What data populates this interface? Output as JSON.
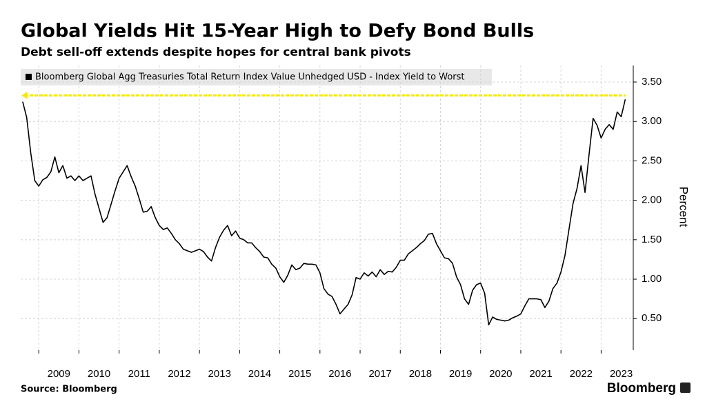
{
  "chart_data": {
    "type": "line",
    "title": "Global Yields Hit 15-Year High to Defy Bond Bulls",
    "subtitle": "Debt sell-off extends despite hopes for central bank pivots",
    "y_label": "Percent",
    "source": "Source: Bloomberg",
    "brand": "Bloomberg",
    "x": [
      2008.6,
      2008.7,
      2008.8,
      2008.9,
      2009.0,
      2009.1,
      2009.2,
      2009.3,
      2009.4,
      2009.5,
      2009.6,
      2009.7,
      2009.8,
      2009.9,
      2010.0,
      2010.1,
      2010.2,
      2010.3,
      2010.4,
      2010.5,
      2010.6,
      2010.7,
      2010.8,
      2010.9,
      2011.0,
      2011.1,
      2011.2,
      2011.3,
      2011.4,
      2011.5,
      2011.6,
      2011.7,
      2011.8,
      2011.9,
      2012.0,
      2012.1,
      2012.2,
      2012.3,
      2012.4,
      2012.5,
      2012.6,
      2012.7,
      2012.8,
      2012.9,
      2013.0,
      2013.1,
      2013.2,
      2013.3,
      2013.4,
      2013.5,
      2013.6,
      2013.7,
      2013.8,
      2013.9,
      2014.0,
      2014.1,
      2014.2,
      2014.3,
      2014.4,
      2014.5,
      2014.6,
      2014.7,
      2014.8,
      2014.9,
      2015.0,
      2015.1,
      2015.2,
      2015.3,
      2015.4,
      2015.5,
      2015.6,
      2015.7,
      2015.8,
      2015.9,
      2016.0,
      2016.1,
      2016.2,
      2016.3,
      2016.4,
      2016.5,
      2016.6,
      2016.7,
      2016.8,
      2016.9,
      2017.0,
      2017.1,
      2017.2,
      2017.3,
      2017.4,
      2017.5,
      2017.6,
      2017.7,
      2017.8,
      2017.9,
      2018.0,
      2018.1,
      2018.2,
      2018.3,
      2018.4,
      2018.5,
      2018.6,
      2018.7,
      2018.8,
      2018.9,
      2019.0,
      2019.1,
      2019.2,
      2019.3,
      2019.4,
      2019.5,
      2019.6,
      2019.7,
      2019.8,
      2019.9,
      2020.0,
      2020.1,
      2020.2,
      2020.3,
      2020.4,
      2020.5,
      2020.6,
      2020.7,
      2020.8,
      2020.9,
      2021.0,
      2021.1,
      2021.2,
      2021.3,
      2021.4,
      2021.5,
      2021.6,
      2021.7,
      2021.8,
      2021.9,
      2022.0,
      2022.1,
      2022.2,
      2022.3,
      2022.4,
      2022.5,
      2022.6,
      2022.7,
      2022.8,
      2022.9,
      2023.0,
      2023.1,
      2023.2,
      2023.3,
      2023.4,
      2023.5,
      2023.6
    ],
    "series": [
      {
        "name": "Bloomberg Global Agg Treasuries Total Return Index Value Unhedged USD - Index Yield to Worst",
        "color": "#000000",
        "values": [
          3.25,
          3.05,
          2.6,
          2.25,
          2.18,
          2.26,
          2.29,
          2.36,
          2.55,
          2.35,
          2.44,
          2.28,
          2.31,
          2.25,
          2.31,
          2.25,
          2.28,
          2.31,
          2.08,
          1.9,
          1.72,
          1.78,
          1.95,
          2.12,
          2.28,
          2.36,
          2.44,
          2.3,
          2.18,
          2.02,
          1.85,
          1.86,
          1.92,
          1.78,
          1.68,
          1.63,
          1.65,
          1.58,
          1.5,
          1.45,
          1.38,
          1.36,
          1.34,
          1.36,
          1.38,
          1.35,
          1.28,
          1.23,
          1.4,
          1.53,
          1.62,
          1.68,
          1.55,
          1.61,
          1.52,
          1.5,
          1.46,
          1.46,
          1.4,
          1.35,
          1.28,
          1.27,
          1.19,
          1.14,
          1.03,
          0.96,
          1.05,
          1.18,
          1.12,
          1.14,
          1.2,
          1.19,
          1.19,
          1.18,
          1.08,
          0.88,
          0.81,
          0.78,
          0.68,
          0.56,
          0.62,
          0.68,
          0.8,
          1.02,
          1.0,
          1.08,
          1.04,
          1.09,
          1.03,
          1.12,
          1.06,
          1.1,
          1.09,
          1.15,
          1.24,
          1.24,
          1.32,
          1.36,
          1.4,
          1.45,
          1.49,
          1.57,
          1.58,
          1.45,
          1.36,
          1.27,
          1.26,
          1.2,
          1.03,
          0.93,
          0.75,
          0.68,
          0.86,
          0.93,
          0.95,
          0.82,
          0.42,
          0.52,
          0.49,
          0.48,
          0.47,
          0.48,
          0.51,
          0.53,
          0.56,
          0.66,
          0.75,
          0.75,
          0.75,
          0.74,
          0.64,
          0.72,
          0.88,
          0.95,
          1.09,
          1.3,
          1.63,
          1.96,
          2.15,
          2.44,
          2.1,
          2.58,
          3.04,
          2.95,
          2.79,
          2.9,
          2.96,
          2.9,
          3.12,
          3.06,
          3.28
        ]
      }
    ],
    "reference_line": {
      "value": 3.33,
      "color": "#f5ea00"
    },
    "xlim": [
      2008.55,
      2023.8
    ],
    "xticks": [
      {
        "value": 2009,
        "label": "2009"
      },
      {
        "value": 2010,
        "label": "2010"
      },
      {
        "value": 2011,
        "label": "2011"
      },
      {
        "value": 2012,
        "label": "2012"
      },
      {
        "value": 2013,
        "label": "2013"
      },
      {
        "value": 2014,
        "label": "2014"
      },
      {
        "value": 2015,
        "label": "2015"
      },
      {
        "value": 2016,
        "label": "2016"
      },
      {
        "value": 2017,
        "label": "2017"
      },
      {
        "value": 2018,
        "label": "2018"
      },
      {
        "value": 2019,
        "label": "2019"
      },
      {
        "value": 2020,
        "label": "2020"
      },
      {
        "value": 2021,
        "label": "2021"
      },
      {
        "value": 2022,
        "label": "2022"
      },
      {
        "value": 2023,
        "label": "2023"
      }
    ],
    "ylim": [
      0.1,
      3.71
    ],
    "yticks": [
      {
        "value": 0.5,
        "label": "0.50"
      },
      {
        "value": 1,
        "label": "1.00"
      },
      {
        "value": 1.5,
        "label": "1.50"
      },
      {
        "value": 2,
        "label": "2.00"
      },
      {
        "value": 2.5,
        "label": "2.50"
      },
      {
        "value": 3,
        "label": "3.00"
      },
      {
        "value": 3.5,
        "label": "3.50"
      }
    ],
    "grid": true
  }
}
